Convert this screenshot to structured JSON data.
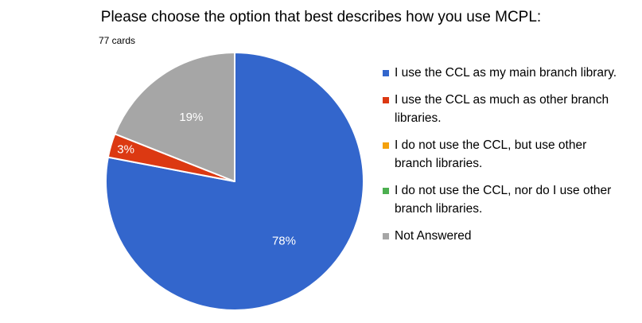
{
  "chart_data": {
    "type": "pie",
    "title": "Please choose the option that best describes how you use MCPL:",
    "subtitle": "77 cards",
    "legend_position": "right",
    "slices": [
      {
        "name": "I use the CCL as my main branch library.",
        "value": 78,
        "label": "78%",
        "color": "#3366CC",
        "label_color": "#ffffff"
      },
      {
        "name": "I use the CCL as much as other branch libraries.",
        "value": 3,
        "label": "3%",
        "color": "#DC3912",
        "label_color": "#ffffff"
      },
      {
        "name": "I do not use the CCL, but use other branch libraries.",
        "value": 0,
        "label": "",
        "color": "#F4A10C",
        "label_color": "#ffffff"
      },
      {
        "name": "I do not use the CCL, nor do I use other branch libraries.",
        "value": 0,
        "label": "",
        "color": "#4CAF50",
        "label_color": "#ffffff"
      },
      {
        "name": "Not Answered",
        "value": 19,
        "label": "19%",
        "color": "#A6A6A6",
        "label_color": "#ffffff"
      }
    ]
  }
}
